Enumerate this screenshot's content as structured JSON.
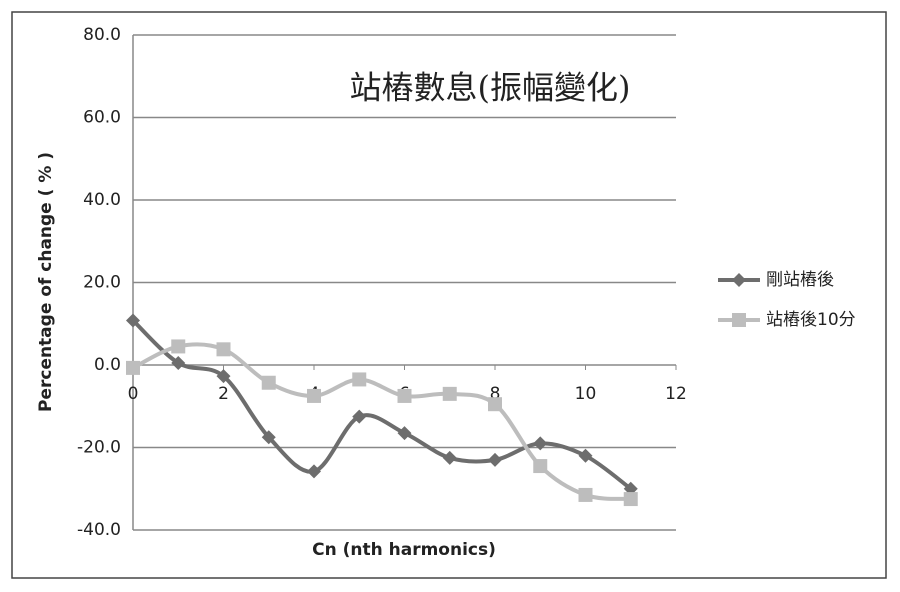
{
  "chart_data": {
    "type": "line",
    "title": "站樁數息(振幅變化)",
    "x_label": "Cn (nth harmonics)",
    "y_label": "Percentage of change ( % )",
    "x": [
      0,
      1,
      2,
      3,
      4,
      5,
      6,
      7,
      8,
      9,
      10,
      11
    ],
    "series": [
      {
        "name": "剛站樁後",
        "color": "#6d6d6d",
        "marker": "diamond",
        "values": [
          10.8,
          0.5,
          -2.7,
          -17.5,
          -25.8,
          -12.5,
          -16.5,
          -22.5,
          -23,
          -19,
          -22,
          -30
        ]
      },
      {
        "name": "站樁後10分",
        "color": "#bdbdbd",
        "marker": "square",
        "values": [
          -0.7,
          4.5,
          3.8,
          -4.3,
          -7.5,
          -3.5,
          -7.5,
          -7,
          -9.5,
          -24.5,
          -31.5,
          -32.5
        ]
      }
    ],
    "xlim": [
      0,
      12
    ],
    "xticks": [
      0,
      2,
      4,
      6,
      8,
      10,
      12
    ],
    "ylim": [
      -40,
      80
    ],
    "yticks": [
      {
        "value": -40,
        "label": "-40.0"
      },
      {
        "value": -20,
        "label": "-20.0"
      },
      {
        "value": 0,
        "label": "0.0"
      },
      {
        "value": 20,
        "label": "20.0"
      },
      {
        "value": 40,
        "label": "40.0"
      },
      {
        "value": 60,
        "label": "60.0"
      },
      {
        "value": 80,
        "label": "80.0"
      }
    ],
    "grid": true,
    "legend": "right",
    "smooth": true
  }
}
